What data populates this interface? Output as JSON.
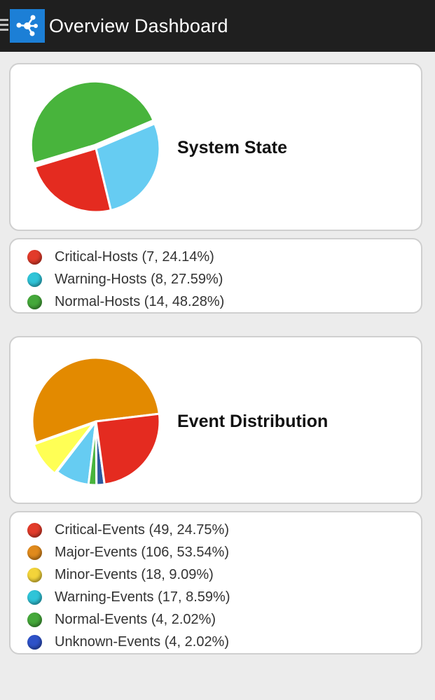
{
  "app": {
    "title": "Overview Dashboard"
  },
  "icons": {
    "menu": "menu-icon",
    "logo": "network-nodes-icon"
  },
  "sections": [
    {
      "title": "System State",
      "legend": [
        {
          "label": "Critical-Hosts (7, 24.14%)",
          "color": "#e23b2a"
        },
        {
          "label": "Warning-Hosts (8, 27.59%)",
          "color": "#2fc4d8"
        },
        {
          "label": "Normal-Hosts (14, 48.28%)",
          "color": "#45a83a"
        }
      ]
    },
    {
      "title": "Event Distribution",
      "legend": [
        {
          "label": "Critical-Events (49, 24.75%)",
          "color": "#e23b2a"
        },
        {
          "label": "Major-Events (106, 53.54%)",
          "color": "#e08a1c"
        },
        {
          "label": "Minor-Events (18, 9.09%)",
          "color": "#f3d43a"
        },
        {
          "label": "Warning-Events (17, 8.59%)",
          "color": "#2fc4d8"
        },
        {
          "label": "Normal-Events (4, 2.02%)",
          "color": "#45a83a"
        },
        {
          "label": "Unknown-Events (4, 2.02%)",
          "color": "#2e52c8"
        }
      ]
    }
  ],
  "chart_data": [
    {
      "type": "pie",
      "title": "System State",
      "categories": [
        "Critical-Hosts",
        "Warning-Hosts",
        "Normal-Hosts"
      ],
      "values": [
        7,
        8,
        14
      ],
      "percentages": [
        24.14,
        27.59,
        48.28
      ],
      "colors": [
        "#e42b20",
        "#66ccf2",
        "#48b43c"
      ]
    },
    {
      "type": "pie",
      "title": "Event Distribution",
      "categories": [
        "Critical-Events",
        "Major-Events",
        "Minor-Events",
        "Warning-Events",
        "Normal-Events",
        "Unknown-Events"
      ],
      "values": [
        49,
        106,
        18,
        17,
        4,
        4
      ],
      "percentages": [
        24.75,
        53.54,
        9.09,
        8.59,
        2.02,
        2.02
      ],
      "colors": [
        "#e42b20",
        "#e38a00",
        "#ffff55",
        "#66ccf2",
        "#48b43c",
        "#2c5aa0"
      ]
    }
  ]
}
